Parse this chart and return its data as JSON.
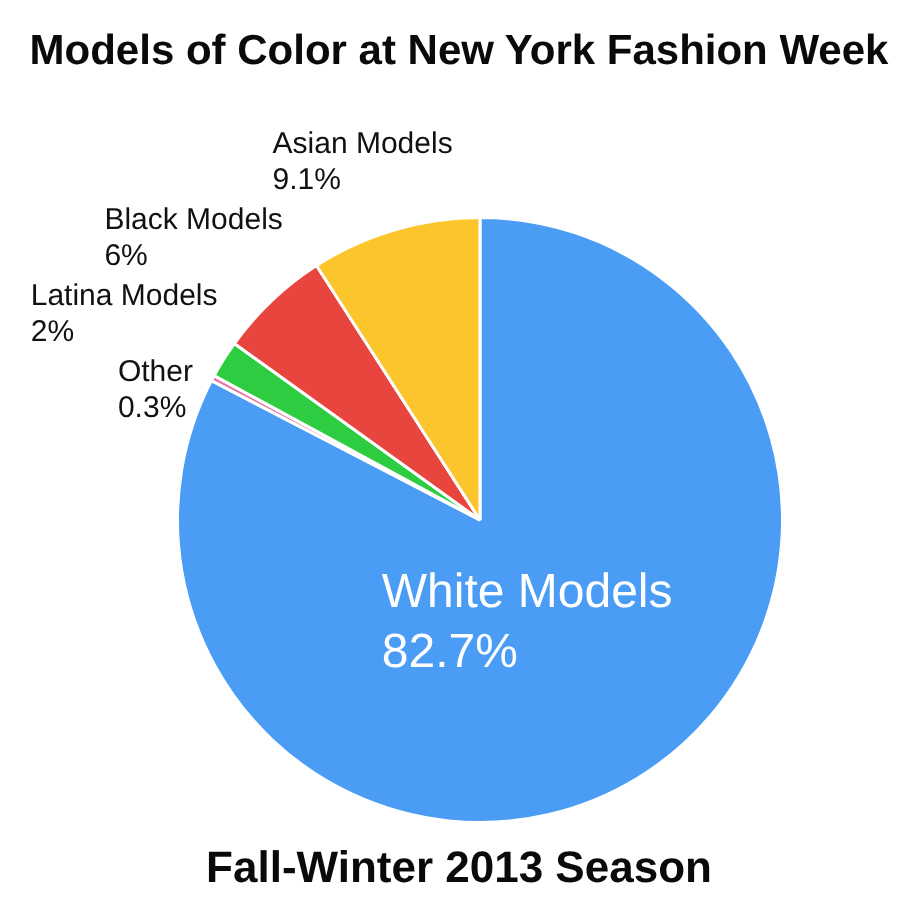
{
  "chart_data": {
    "type": "pie",
    "title": "Models of Color at New York Fashion Week",
    "subtitle": "Fall-Winter 2013 Season",
    "categories": [
      "White Models",
      "Other",
      "Latina Models",
      "Black Models",
      "Asian Models"
    ],
    "values": [
      82.7,
      0.3,
      2,
      6,
      9.1
    ],
    "colors": [
      "#4a9cf4",
      "#e47aa8",
      "#2ecc40",
      "#e8453f",
      "#fcc52c"
    ],
    "value_labels": [
      "82.7%",
      "0.3%",
      "2%",
      "6%",
      "9.1%"
    ]
  }
}
